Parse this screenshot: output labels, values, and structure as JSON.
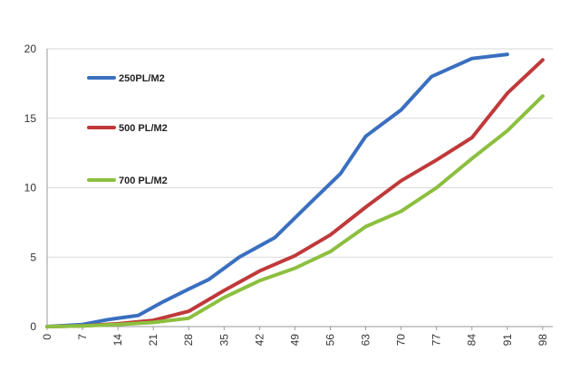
{
  "chart_data": {
    "type": "line",
    "title": "",
    "xlabel": "",
    "ylabel": "",
    "x": [
      0,
      7,
      14,
      21,
      28,
      35,
      42,
      49,
      56,
      63,
      70,
      77,
      84,
      91,
      98
    ],
    "x_ticks": [
      "0",
      "7",
      "14",
      "21",
      "28",
      "35",
      "42",
      "49",
      "56",
      "63",
      "70",
      "77",
      "84",
      "91",
      "98"
    ],
    "y_ticks": [
      "0",
      "5",
      "10",
      "15",
      "20"
    ],
    "xlim": [
      0,
      100
    ],
    "ylim": [
      0,
      20
    ],
    "grid": "horizontal",
    "legend_position": "top-left",
    "series": [
      {
        "name": "250PL/M2",
        "color": "#3a6fc0",
        "points": [
          [
            0,
            0
          ],
          [
            7,
            0.15
          ],
          [
            12,
            0.5
          ],
          [
            18,
            0.8
          ],
          [
            23,
            1.8
          ],
          [
            28,
            2.7
          ],
          [
            32,
            3.4
          ],
          [
            38,
            5.0
          ],
          [
            45,
            6.4
          ],
          [
            52,
            8.9
          ],
          [
            58,
            11.0
          ],
          [
            63,
            13.7
          ],
          [
            70,
            15.6
          ],
          [
            76,
            18.0
          ],
          [
            84,
            19.3
          ],
          [
            91,
            19.6
          ]
        ]
      },
      {
        "name": "500 PL/M2",
        "color": "#c0393a",
        "points": [
          [
            0,
            0
          ],
          [
            7,
            0.05
          ],
          [
            14,
            0.2
          ],
          [
            21,
            0.45
          ],
          [
            28,
            1.1
          ],
          [
            35,
            2.6
          ],
          [
            42,
            4.0
          ],
          [
            49,
            5.1
          ],
          [
            56,
            6.6
          ],
          [
            63,
            8.6
          ],
          [
            70,
            10.5
          ],
          [
            77,
            12.0
          ],
          [
            84,
            13.6
          ],
          [
            91,
            16.8
          ],
          [
            98,
            19.2
          ]
        ]
      },
      {
        "name": "700 PL/M2",
        "color": "#8cbf3f",
        "points": [
          [
            0,
            0
          ],
          [
            7,
            0.05
          ],
          [
            14,
            0.15
          ],
          [
            21,
            0.3
          ],
          [
            28,
            0.6
          ],
          [
            35,
            2.1
          ],
          [
            42,
            3.3
          ],
          [
            49,
            4.2
          ],
          [
            56,
            5.4
          ],
          [
            63,
            7.2
          ],
          [
            70,
            8.3
          ],
          [
            77,
            10.0
          ],
          [
            84,
            12.1
          ],
          [
            91,
            14.1
          ],
          [
            98,
            16.6
          ]
        ]
      }
    ]
  }
}
